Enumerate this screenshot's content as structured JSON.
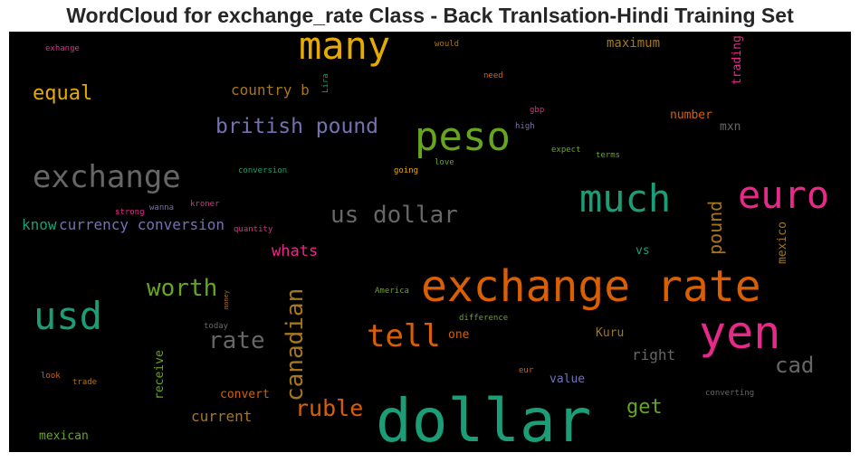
{
  "title": "WordCloud for exchange_rate Class - Back Tranlsation-Hindi Training Set",
  "colors": {
    "background": "#000000",
    "teal": "#1b9e77",
    "orange": "#d95f02",
    "purple": "#7570b3",
    "pink": "#e7298a",
    "green": "#66a61e",
    "gold": "#e6ab02",
    "brown": "#a6761d",
    "gray": "#666666"
  },
  "chart_data": {
    "type": "wordcloud",
    "words": [
      {
        "text": "dollar",
        "weight": 1.0,
        "color": "teal",
        "vertical": false
      },
      {
        "text": "exchange rate",
        "weight": 0.82,
        "color": "orange",
        "vertical": false
      },
      {
        "text": "yen",
        "weight": 0.8,
        "color": "pink",
        "vertical": false
      },
      {
        "text": "usd",
        "weight": 0.7,
        "color": "teal",
        "vertical": false
      },
      {
        "text": "many",
        "weight": 0.7,
        "color": "gold",
        "vertical": false
      },
      {
        "text": "peso",
        "weight": 0.7,
        "color": "green",
        "vertical": false
      },
      {
        "text": "euro",
        "weight": 0.7,
        "color": "pink",
        "vertical": false
      },
      {
        "text": "much",
        "weight": 0.65,
        "color": "teal",
        "vertical": false
      },
      {
        "text": "exchange",
        "weight": 0.62,
        "color": "gray",
        "vertical": false
      },
      {
        "text": "tell",
        "weight": 0.55,
        "color": "orange",
        "vertical": false
      },
      {
        "text": "us dollar",
        "weight": 0.45,
        "color": "gray",
        "vertical": false
      },
      {
        "text": "british pound",
        "weight": 0.42,
        "color": "purple",
        "vertical": false
      },
      {
        "text": "worth",
        "weight": 0.45,
        "color": "green",
        "vertical": false
      },
      {
        "text": "rate",
        "weight": 0.42,
        "color": "gray",
        "vertical": false
      },
      {
        "text": "canadian",
        "weight": 0.42,
        "color": "brown",
        "vertical": true
      },
      {
        "text": "ruble",
        "weight": 0.42,
        "color": "orange",
        "vertical": false
      },
      {
        "text": "cad",
        "weight": 0.42,
        "color": "gray",
        "vertical": false
      },
      {
        "text": "equal",
        "weight": 0.38,
        "color": "gold",
        "vertical": false
      },
      {
        "text": "pound",
        "weight": 0.35,
        "color": "brown",
        "vertical": true
      },
      {
        "text": "get",
        "weight": 0.35,
        "color": "green",
        "vertical": false
      },
      {
        "text": "currency conversion",
        "weight": 0.3,
        "color": "purple",
        "vertical": false
      },
      {
        "text": "know",
        "weight": 0.28,
        "color": "teal",
        "vertical": false
      },
      {
        "text": "whats",
        "weight": 0.3,
        "color": "pink",
        "vertical": false
      },
      {
        "text": "country b",
        "weight": 0.28,
        "color": "brown",
        "vertical": false
      },
      {
        "text": "current",
        "weight": 0.28,
        "color": "brown",
        "vertical": false
      },
      {
        "text": "right",
        "weight": 0.26,
        "color": "gray",
        "vertical": false
      },
      {
        "text": "maximum",
        "weight": 0.24,
        "color": "brown",
        "vertical": false
      },
      {
        "text": "trading",
        "weight": 0.22,
        "color": "pink",
        "vertical": true
      },
      {
        "text": "mexico",
        "weight": 0.22,
        "color": "brown",
        "vertical": true
      },
      {
        "text": "receive",
        "weight": 0.22,
        "color": "green",
        "vertical": true
      },
      {
        "text": "number",
        "weight": 0.22,
        "color": "orange",
        "vertical": false
      },
      {
        "text": "mxn",
        "weight": 0.22,
        "color": "gray",
        "vertical": false
      },
      {
        "text": "mexican",
        "weight": 0.22,
        "color": "green",
        "vertical": false
      },
      {
        "text": "convert",
        "weight": 0.22,
        "color": "orange",
        "vertical": false
      },
      {
        "text": "value",
        "weight": 0.22,
        "color": "purple",
        "vertical": false
      },
      {
        "text": "Kuru",
        "weight": 0.2,
        "color": "brown",
        "vertical": false
      },
      {
        "text": "vs",
        "weight": 0.2,
        "color": "teal",
        "vertical": false
      },
      {
        "text": "one",
        "weight": 0.2,
        "color": "orange",
        "vertical": false
      },
      {
        "text": "exhange",
        "weight": 0.12,
        "color": "pink",
        "vertical": false
      },
      {
        "text": "would",
        "weight": 0.12,
        "color": "brown",
        "vertical": false
      },
      {
        "text": "Lira",
        "weight": 0.1,
        "color": "teal",
        "vertical": true
      },
      {
        "text": "need",
        "weight": 0.12,
        "color": "orange",
        "vertical": false
      },
      {
        "text": "gbp",
        "weight": 0.12,
        "color": "pink",
        "vertical": false
      },
      {
        "text": "high",
        "weight": 0.12,
        "color": "purple",
        "vertical": false
      },
      {
        "text": "expect",
        "weight": 0.12,
        "color": "green",
        "vertical": false
      },
      {
        "text": "terms",
        "weight": 0.12,
        "color": "green",
        "vertical": false
      },
      {
        "text": "conversion",
        "weight": 0.12,
        "color": "teal",
        "vertical": false
      },
      {
        "text": "love",
        "weight": 0.12,
        "color": "green",
        "vertical": false
      },
      {
        "text": "going",
        "weight": 0.12,
        "color": "gold",
        "vertical": false
      },
      {
        "text": "wanna",
        "weight": 0.11,
        "color": "purple",
        "vertical": false
      },
      {
        "text": "kroner",
        "weight": 0.11,
        "color": "pink",
        "vertical": false
      },
      {
        "text": "strong",
        "weight": 0.11,
        "color": "pink",
        "vertical": false
      },
      {
        "text": "quantity",
        "weight": 0.11,
        "color": "pink",
        "vertical": false
      },
      {
        "text": "America",
        "weight": 0.11,
        "color": "green",
        "vertical": false
      },
      {
        "text": "money",
        "weight": 0.09,
        "color": "brown",
        "vertical": true
      },
      {
        "text": "difference",
        "weight": 0.11,
        "color": "green",
        "vertical": false
      },
      {
        "text": "today",
        "weight": 0.11,
        "color": "gray",
        "vertical": false
      },
      {
        "text": "look",
        "weight": 0.11,
        "color": "orange",
        "vertical": false
      },
      {
        "text": "trade",
        "weight": 0.11,
        "color": "brown",
        "vertical": false
      },
      {
        "text": "eur",
        "weight": 0.11,
        "color": "orange",
        "vertical": false
      },
      {
        "text": "converting",
        "weight": 0.11,
        "color": "gray",
        "vertical": false
      }
    ]
  }
}
